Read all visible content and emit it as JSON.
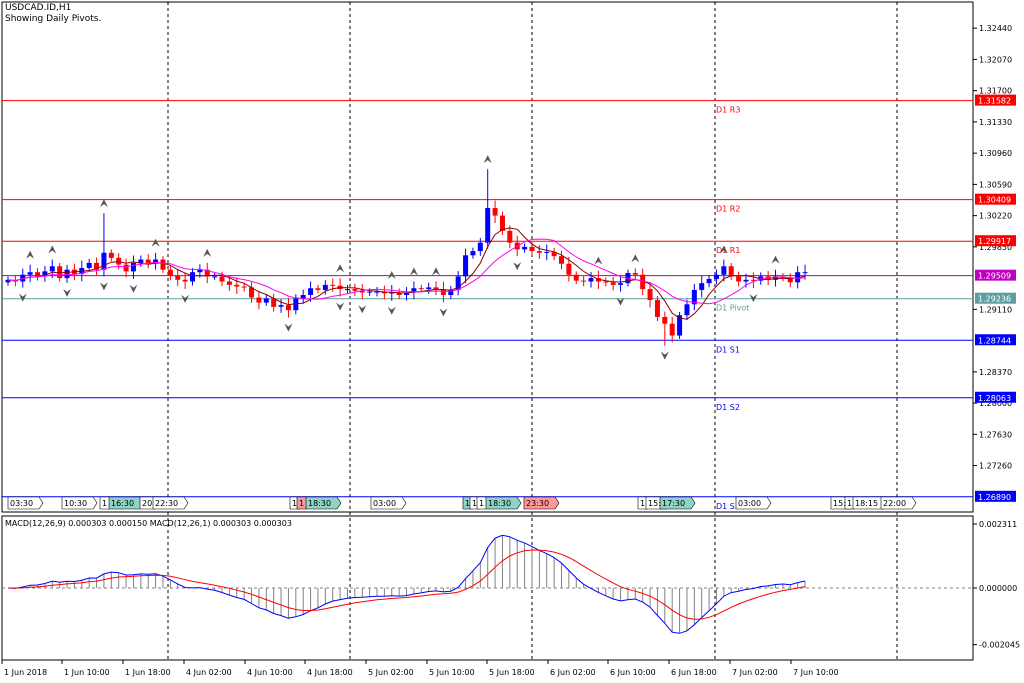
{
  "header": {
    "symbol": "USDCAD.ID,H1",
    "subtitle": "Showing Daily Pivots."
  },
  "colors": {
    "background": "#ffffff",
    "bull_candle": "#0000ff",
    "bear_candle": "#ff0000",
    "resistance_line": "#ff0000",
    "support_line": "#0000ff",
    "pivot_line": "#5f9ea0",
    "ma_fast": "#8b0000",
    "ma_slow": "#ff00ff",
    "macd_line": "#0000ff",
    "signal_line": "#ff0000",
    "histogram": "#808080"
  },
  "pivots": [
    {
      "label": "D1 R3",
      "value": 1.31582,
      "tag": "1.31582",
      "kind": "resistance"
    },
    {
      "label": "D1 R2",
      "value": 1.30409,
      "tag": "1.30409",
      "kind": "resistance"
    },
    {
      "label": "D1 R1",
      "value": 1.29917,
      "tag": "1.29917",
      "kind": "resistance"
    },
    {
      "label": "D1 Pivot",
      "value": 1.29236,
      "tag": "1.29236",
      "kind": "pivot"
    },
    {
      "label": "D1 S1",
      "value": 1.28744,
      "tag": "1.28744",
      "kind": "support"
    },
    {
      "label": "D1 S2",
      "value": 1.28063,
      "tag": "1.28063",
      "kind": "support"
    },
    {
      "label": "D1 S3",
      "value": 1.2689,
      "tag": "1.26890",
      "kind": "support"
    }
  ],
  "current_price": {
    "value": 1.29509,
    "tag": "1.29509"
  },
  "session_tags": [
    {
      "label": "03:30",
      "color": "#ffffff"
    },
    {
      "label": "10:30",
      "color": "#ffffff"
    },
    {
      "label": "1",
      "color": "#ffffff"
    },
    {
      "label": "16:30",
      "color": "#8fd3c8"
    },
    {
      "label": "20",
      "color": "#ffffff"
    },
    {
      "label": "22:30",
      "color": "#ffffff"
    },
    {
      "label": "1",
      "color": "#ffffff"
    },
    {
      "label": "1",
      "color": "#ff9999"
    },
    {
      "label": "18:30",
      "color": "#8fd3c8"
    },
    {
      "label": "03:00",
      "color": "#ffffff"
    },
    {
      "label": "1",
      "color": "#8fd3c8"
    },
    {
      "label": "1",
      "color": "#ffffff"
    },
    {
      "label": "1",
      "color": "#ffffff"
    },
    {
      "label": "18:30",
      "color": "#8fd3c8"
    },
    {
      "label": "23:30",
      "color": "#ff9999"
    },
    {
      "label": "1",
      "color": "#ffffff"
    },
    {
      "label": "15:",
      "color": "#ffffff"
    },
    {
      "label": "17:30",
      "color": "#8fd3c8"
    },
    {
      "label": "03:00",
      "color": "#ffffff"
    },
    {
      "label": "15:",
      "color": "#ffffff"
    },
    {
      "label": "1",
      "color": "#ffffff"
    },
    {
      "label": "18:15",
      "color": "#ffffff"
    },
    {
      "label": "22:00",
      "color": "#ffffff"
    }
  ],
  "chart_data": [
    {
      "type": "candlestick",
      "title": "USDCAD.ID,H1",
      "subtitle": "Showing Daily Pivots.",
      "ylim": [
        1.2671,
        1.3275
      ],
      "yticks": [
        "1.32440",
        "1.32070",
        "1.31700",
        "1.31330",
        "1.30960",
        "1.30590",
        "1.30220",
        "1.29850",
        "1.29110",
        "1.28370",
        "1.28000",
        "1.27630",
        "1.27260"
      ],
      "xticks": [
        "1 Jun 2018",
        "1 Jun 10:00",
        "1 Jun 18:00",
        "4 Jun 02:00",
        "4 Jun 10:00",
        "4 Jun 18:00",
        "5 Jun 02:00",
        "5 Jun 10:00",
        "5 Jun 18:00",
        "6 Jun 02:00",
        "6 Jun 10:00",
        "6 Jun 18:00",
        "7 Jun 02:00",
        "7 Jun 10:00"
      ],
      "grid": false,
      "closes": [
        1.2946,
        1.2944,
        1.2952,
        1.2955,
        1.295,
        1.2956,
        1.2962,
        1.2948,
        1.2958,
        1.2953,
        1.296,
        1.2966,
        1.2958,
        1.2978,
        1.2972,
        1.2964,
        1.2956,
        1.2966,
        1.297,
        1.2966,
        1.297,
        1.2958,
        1.2951,
        1.2946,
        1.2944,
        1.2955,
        1.2958,
        1.295,
        1.295,
        1.2944,
        1.294,
        1.2938,
        1.2937,
        1.2925,
        1.2919,
        1.2924,
        1.2914,
        1.2916,
        1.291,
        1.2924,
        1.2928,
        1.2936,
        1.2934,
        1.294,
        1.2939,
        1.2935,
        1.2935,
        1.2933,
        1.2931,
        1.2932,
        1.2932,
        1.293,
        1.2931,
        1.2928,
        1.2931,
        1.2936,
        1.2935,
        1.2937,
        1.2935,
        1.2928,
        1.2934,
        1.295,
        1.2975,
        1.298,
        1.299,
        1.3031,
        1.3022,
        1.3004,
        1.299,
        1.2982,
        1.2985,
        1.298,
        1.2978,
        1.2979,
        1.2974,
        1.2965,
        1.2952,
        1.2945,
        1.2944,
        1.2948,
        1.2944,
        1.2943,
        1.294,
        1.2942,
        1.2954,
        1.2952,
        1.2935,
        1.2922,
        1.2902,
        1.2894,
        1.288,
        1.2904,
        1.2917,
        1.2934,
        1.2942,
        1.2947,
        1.2952,
        1.2962,
        1.295,
        1.2944,
        1.2946,
        1.2945,
        1.295,
        1.2946,
        1.295,
        1.2948,
        1.2943,
        1.2955,
        1.2955
      ]
    },
    {
      "type": "line+bar",
      "title": "MACD(12,26,9) 0.000303 0.000150 MACD(12,26,1) 0.000303 0.000303",
      "ylim": [
        -0.0026,
        0.0026
      ],
      "yticks": [
        "0.002311",
        "0.000000",
        "-0.002045"
      ],
      "series": [
        {
          "name": "MACD(12,26,9)",
          "type": "bar"
        },
        {
          "name": "MACD(12,26,9) signal",
          "type": "line"
        },
        {
          "name": "MACD(12,26,1)",
          "type": "line"
        }
      ]
    }
  ]
}
